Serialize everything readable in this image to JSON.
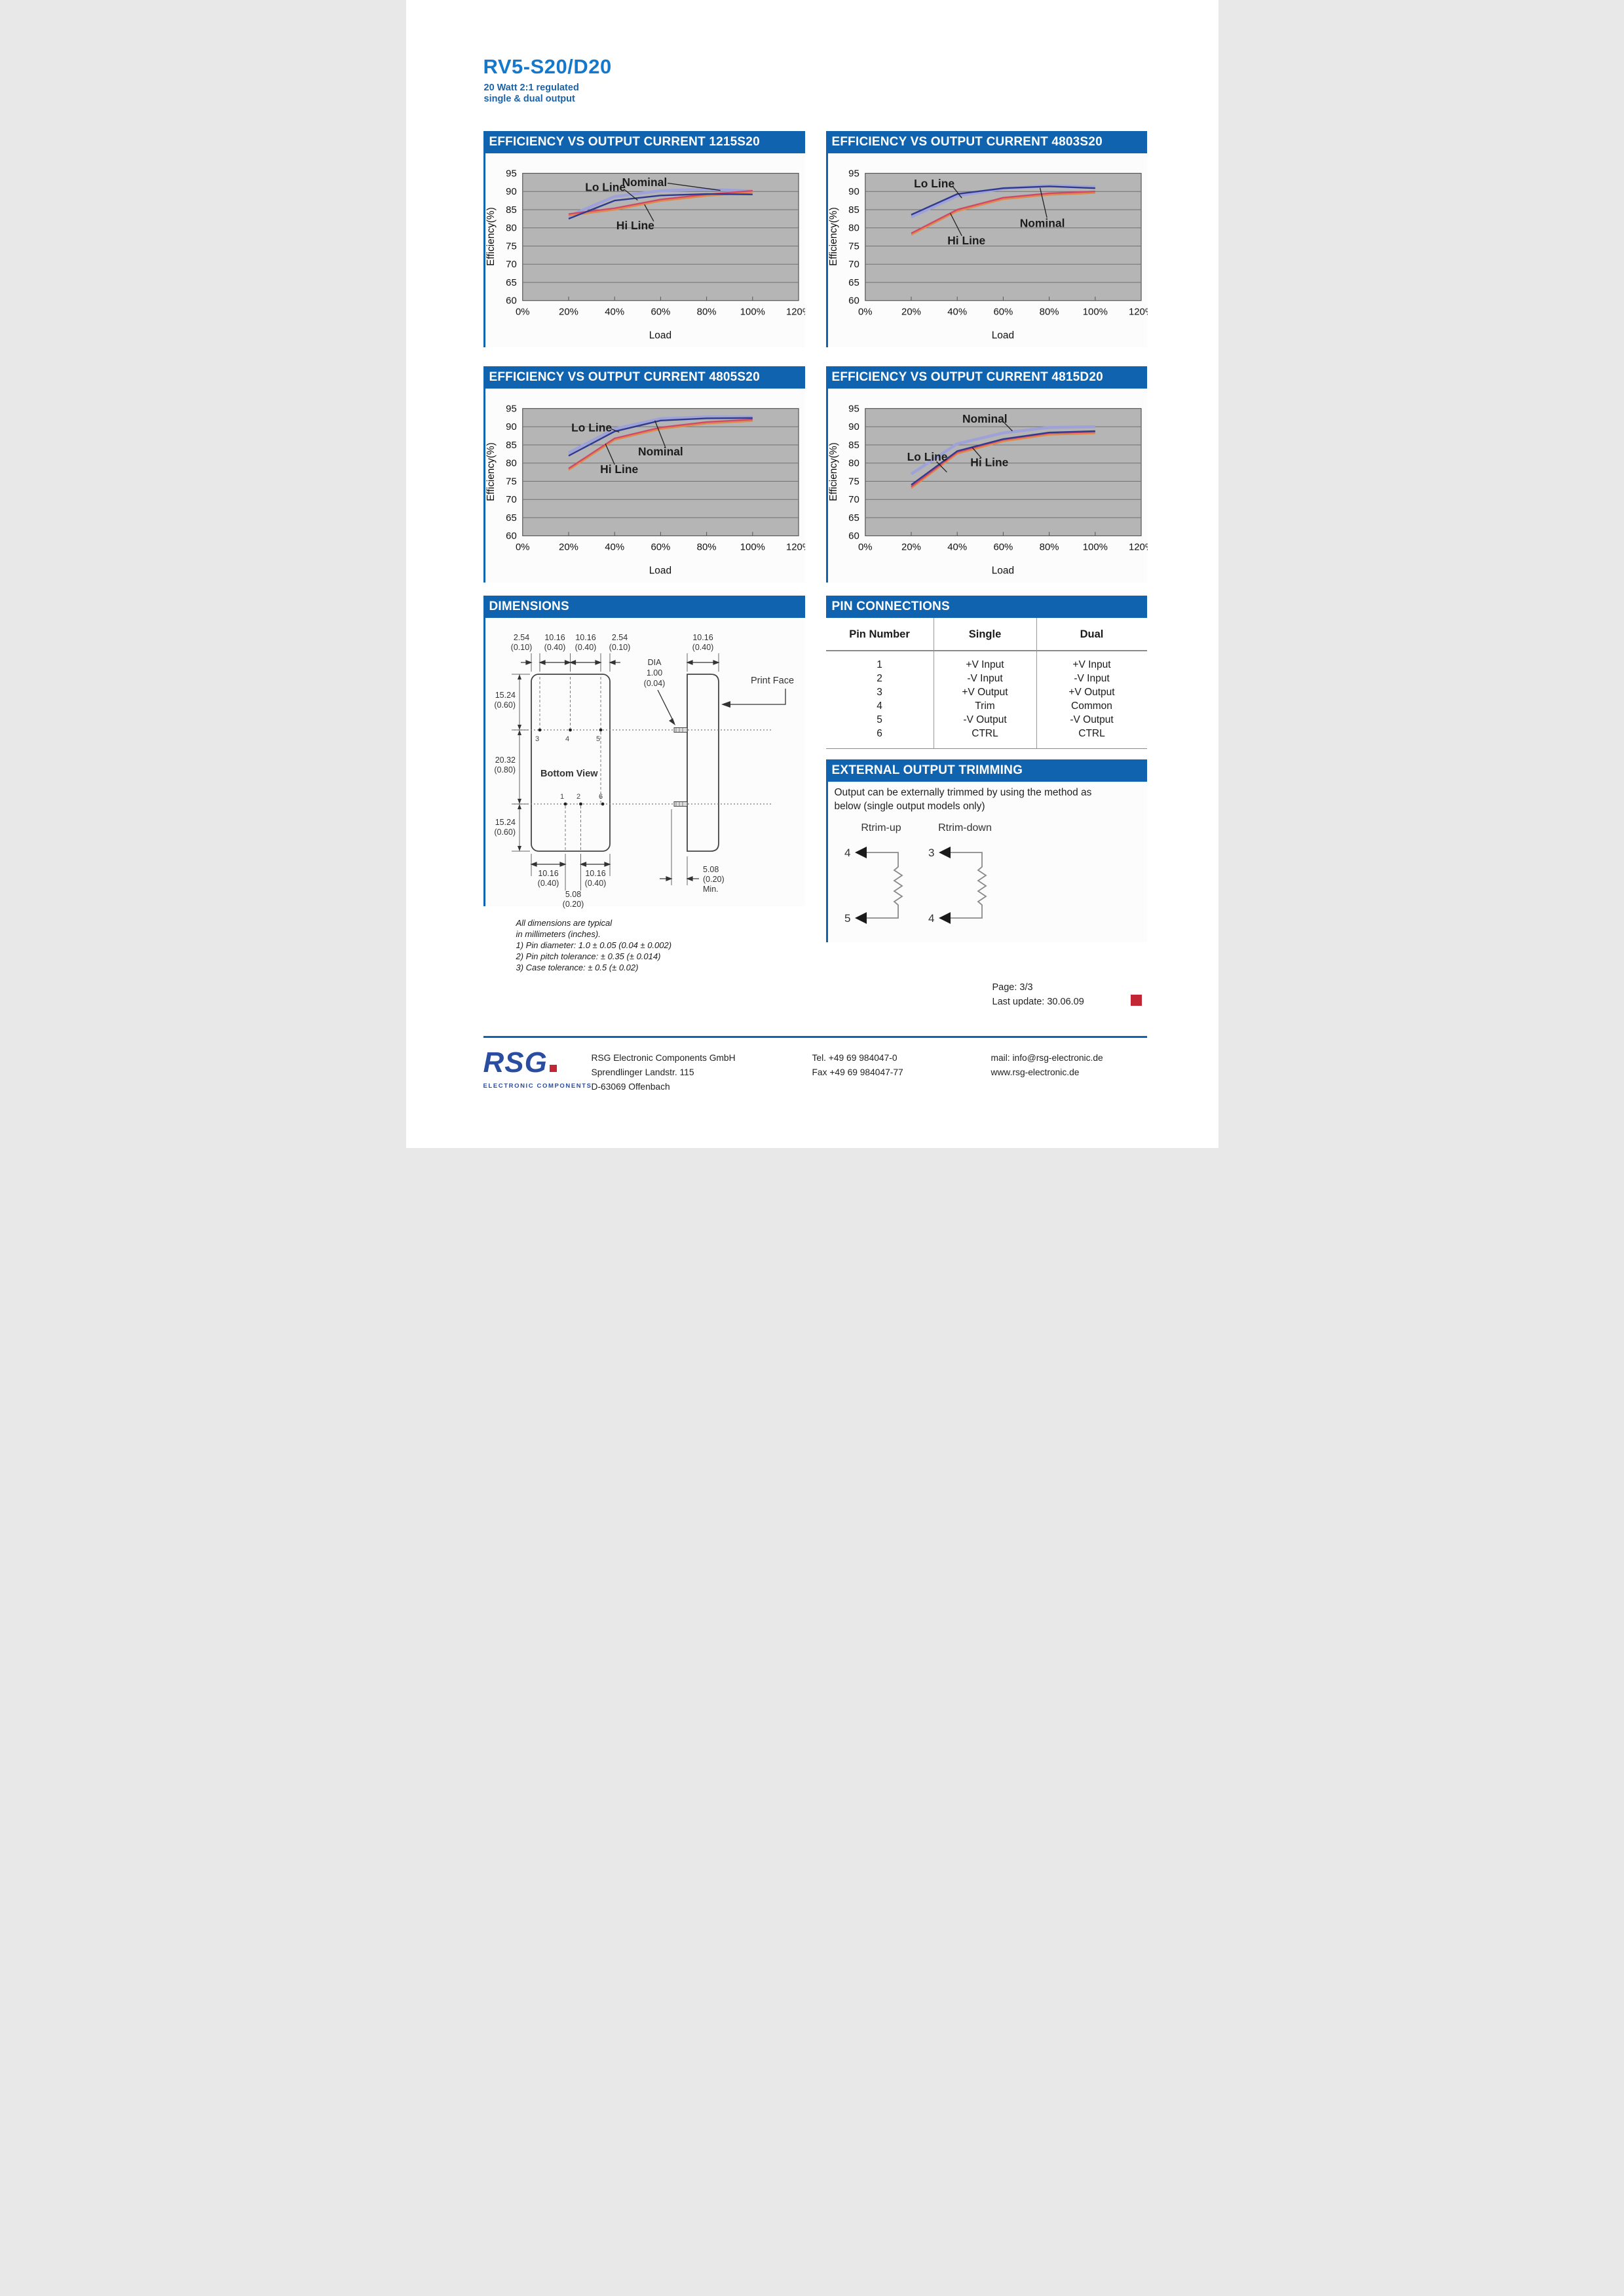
{
  "page": {
    "title": "RV5-S20/D20",
    "subtitle_line1": "20 Watt 2:1 regulated",
    "subtitle_line2": "single & dual output",
    "page_info": "Page: 3/3",
    "last_update": "Last update: 30.06.09"
  },
  "colors": {
    "header_bar": "#1063ae",
    "title_blue": "#1478cc",
    "logo_blue": "#2b4da0",
    "accent_red": "#c22533",
    "plot_bg": "#b5b5b5",
    "lo_line": "#2f3a8f",
    "nominal": "#9fa2d8",
    "hi_line": "#cf4a6a"
  },
  "chart_data": [
    {
      "type": "line",
      "title": "EFFICIENCY VS OUTPUT CURRENT 1215S20",
      "xlabel": "Load",
      "ylabel": "Efficiency(%)",
      "ylim": [
        60,
        95
      ],
      "yticks": [
        60,
        65,
        70,
        75,
        80,
        85,
        90,
        95
      ],
      "xtick_labels": [
        "0%",
        "20%",
        "40%",
        "60%",
        "80%",
        "100%",
        "120%"
      ],
      "xtick_values": [
        0,
        20,
        40,
        60,
        80,
        100,
        120
      ],
      "x": [
        20,
        40,
        60,
        80,
        100
      ],
      "series": [
        {
          "name": "Nominal",
          "color": "#9fa2d8",
          "width": 4.5,
          "values": [
            83.2,
            88.6,
            90.2,
            90.6,
            90.1
          ]
        },
        {
          "name": "Hi Line",
          "color": "#cf4a6a",
          "width": 2.4,
          "shadow": "#e08a4a",
          "values": [
            83.8,
            85.4,
            87.8,
            89.2,
            90.2
          ]
        },
        {
          "name": "Lo Line",
          "color": "#2f3a8f",
          "width": 2.4,
          "values": [
            82.5,
            87.5,
            88.9,
            89.3,
            89.2
          ]
        }
      ],
      "labels": [
        {
          "text": "Lo Line",
          "tx": 36,
          "ty": 91.2,
          "lx1": 44.5,
          "ly1": 90.4,
          "lx2": 50,
          "ly2": 87.6
        },
        {
          "text": "Nominal",
          "tx": 53,
          "ty": 92.6,
          "lx1": 63,
          "ly1": 92.3,
          "lx2": 86,
          "ly2": 90.3
        },
        {
          "text": "Hi Line",
          "tx": 49,
          "ty": 80.7,
          "lx1": 57,
          "ly1": 81.8,
          "lx2": 53,
          "ly2": 86.4
        }
      ]
    },
    {
      "type": "line",
      "title": "EFFICIENCY VS OUTPUT CURRENT 4803S20",
      "xlabel": "Load",
      "ylabel": "Efficiency(%)",
      "ylim": [
        60,
        95
      ],
      "yticks": [
        60,
        65,
        70,
        75,
        80,
        85,
        90,
        95
      ],
      "xtick_labels": [
        "0%",
        "20%",
        "40%",
        "60%",
        "80%",
        "100%",
        "120%"
      ],
      "xtick_values": [
        0,
        20,
        40,
        60,
        80,
        100,
        120
      ],
      "x": [
        20,
        40,
        60,
        80,
        100
      ],
      "series": [
        {
          "name": "Nominal",
          "color": "#9fa2d8",
          "width": 4.5,
          "values": [
            83.0,
            88.8,
            90.8,
            91.6,
            91.2
          ]
        },
        {
          "name": "Hi Line",
          "color": "#cf4a6a",
          "width": 2.4,
          "shadow": "#e08a4a",
          "values": [
            78.5,
            85.0,
            88.3,
            89.5,
            90.0
          ]
        },
        {
          "name": "Lo Line",
          "color": "#2f3a8f",
          "width": 2.4,
          "values": [
            83.6,
            89.3,
            90.9,
            91.4,
            90.9
          ]
        }
      ],
      "labels": [
        {
          "text": "Lo Line",
          "tx": 30,
          "ty": 92.2,
          "lx1": 38,
          "ly1": 91.4,
          "lx2": 42,
          "ly2": 88.2
        },
        {
          "text": "Nominal",
          "tx": 77,
          "ty": 81.3,
          "lx1": 79,
          "ly1": 82.8,
          "lx2": 76,
          "ly2": 91.0
        },
        {
          "text": "Hi Line",
          "tx": 44,
          "ty": 76.5,
          "lx1": 42,
          "ly1": 77.8,
          "lx2": 37,
          "ly2": 84.0
        }
      ]
    },
    {
      "type": "line",
      "title": "EFFICIENCY VS OUTPUT CURRENT 4805S20",
      "xlabel": "Load",
      "ylabel": "Efficiency(%)",
      "ylim": [
        60,
        95
      ],
      "yticks": [
        60,
        65,
        70,
        75,
        80,
        85,
        90,
        95
      ],
      "xtick_labels": [
        "0%",
        "20%",
        "40%",
        "60%",
        "80%",
        "100%",
        "120%"
      ],
      "xtick_values": [
        0,
        20,
        40,
        60,
        80,
        100,
        120
      ],
      "x": [
        20,
        40,
        60,
        80,
        100
      ],
      "series": [
        {
          "name": "Nominal",
          "color": "#9fa2d8",
          "width": 4.5,
          "values": [
            82.8,
            89.4,
            92.2,
            92.7,
            92.6
          ]
        },
        {
          "name": "Hi Line",
          "color": "#cf4a6a",
          "width": 2.4,
          "shadow": "#e08a4a",
          "values": [
            78.5,
            86.8,
            89.8,
            91.3,
            92.0
          ]
        },
        {
          "name": "Lo Line",
          "color": "#2f3a8f",
          "width": 2.4,
          "values": [
            82.0,
            88.7,
            91.7,
            92.3,
            92.4
          ]
        }
      ],
      "labels": [
        {
          "text": "Lo Line",
          "tx": 30,
          "ty": 89.8,
          "lx1": 38.5,
          "ly1": 89.4,
          "lx2": 42,
          "ly2": 88.5
        },
        {
          "text": "Nominal",
          "tx": 60,
          "ty": 83.2,
          "lx1": 62,
          "ly1": 84.5,
          "lx2": 57.5,
          "ly2": 91.7
        },
        {
          "text": "Hi Line",
          "tx": 42,
          "ty": 78.3,
          "lx1": 40,
          "ly1": 79.6,
          "lx2": 36,
          "ly2": 85.3
        }
      ]
    },
    {
      "type": "line",
      "title": "EFFICIENCY VS OUTPUT CURRENT 4815D20",
      "xlabel": "Load",
      "ylabel": "Efficiency(%)",
      "ylim": [
        60,
        95
      ],
      "yticks": [
        60,
        65,
        70,
        75,
        80,
        85,
        90,
        95
      ],
      "xtick_labels": [
        "0%",
        "20%",
        "40%",
        "60%",
        "80%",
        "100%",
        "120%"
      ],
      "xtick_values": [
        0,
        20,
        40,
        60,
        80,
        100,
        120
      ],
      "x": [
        20,
        40,
        60,
        80,
        100
      ],
      "series": [
        {
          "name": "Nominal",
          "color": "#9fa2d8",
          "width": 4.5,
          "values": [
            77.0,
            85.3,
            88.3,
            89.8,
            90.0
          ]
        },
        {
          "name": "Hi Line",
          "color": "#cf4a6a",
          "width": 2.4,
          "shadow": "#e08a4a",
          "values": [
            73.5,
            83.0,
            86.4,
            88.2,
            88.6
          ]
        },
        {
          "name": "Lo Line",
          "color": "#2f3a8f",
          "width": 2.4,
          "values": [
            74.0,
            83.3,
            86.6,
            88.4,
            88.8
          ]
        }
      ],
      "labels": [
        {
          "text": "Nominal",
          "tx": 52,
          "ty": 92.2,
          "lx1": 60,
          "ly1": 91.4,
          "lx2": 64,
          "ly2": 88.8
        },
        {
          "text": "Lo Line",
          "tx": 27,
          "ty": 81.7,
          "lx1": 31,
          "ly1": 80.4,
          "lx2": 35.5,
          "ly2": 77.5
        },
        {
          "text": "Hi Line",
          "tx": 54,
          "ty": 80.2,
          "lx1": 50.5,
          "ly1": 81.4,
          "lx2": 46.5,
          "ly2": 84.3
        }
      ]
    }
  ],
  "dimensions": {
    "header": "DIMENSIONS",
    "bottom_view": "Bottom View",
    "print_face": "Print Face",
    "d254": "2.54",
    "d254i": "(0.10)",
    "d1016": "10.16",
    "d1016i": "(0.40)",
    "d1524": "15.24",
    "d1524i": "(0.60)",
    "d2032": "20.32",
    "d2032i": "(0.80)",
    "d508": "5.08",
    "d508i": "(0.20)",
    "min_label": "Min.",
    "dia1": "DIA",
    "dia2": "1.00",
    "dia3": "(0.04)",
    "pin1": "1",
    "pin2": "2",
    "pin3": "3",
    "pin4": "4",
    "pin5": "5",
    "pin6": "6",
    "notes": [
      "All dimensions are typical",
      "in millimeters (inches).",
      "1)  Pin diameter: 1.0 ± 0.05 (0.04 ± 0.002)",
      "2)  Pin pitch tolerance: ± 0.35 (± 0.014)",
      "3)  Case tolerance: ± 0.5 (± 0.02)"
    ]
  },
  "pin_connections": {
    "header": "PIN CONNECTIONS",
    "columns": [
      "Pin Number",
      "Single",
      "Dual"
    ],
    "rows": [
      [
        "1",
        "+V Input",
        "+V Input"
      ],
      [
        "2",
        "-V Input",
        "-V Input"
      ],
      [
        "3",
        "+V Output",
        "+V Output"
      ],
      [
        "4",
        "Trim",
        "Common"
      ],
      [
        "5",
        "-V Output",
        "-V Output"
      ],
      [
        "6",
        "CTRL",
        "CTRL"
      ]
    ]
  },
  "trimming": {
    "header": "EXTERNAL OUTPUT TRIMMING",
    "text_line1": "Output can be externally trimmed by using the method as",
    "text_line2": "below (single output models only)",
    "diagrams": [
      {
        "label": "Rtrim-up",
        "top_pin": "4",
        "bottom_pin": "5"
      },
      {
        "label": "Rtrim-down",
        "top_pin": "3",
        "bottom_pin": "4"
      }
    ]
  },
  "footer": {
    "logo_text": "RSG",
    "logo_sub": "ELECTRONIC COMPONENTS",
    "company_line1": "RSG Electronic Components GmbH",
    "company_line2": "Sprendlinger Landstr. 115",
    "company_line3": "D-63069 Offenbach",
    "tel": "Tel. +49 69 984047-0",
    "fax": "Fax +49 69 984047-77",
    "mail": "mail: info@rsg-electronic.de",
    "web": "www.rsg-electronic.de"
  }
}
